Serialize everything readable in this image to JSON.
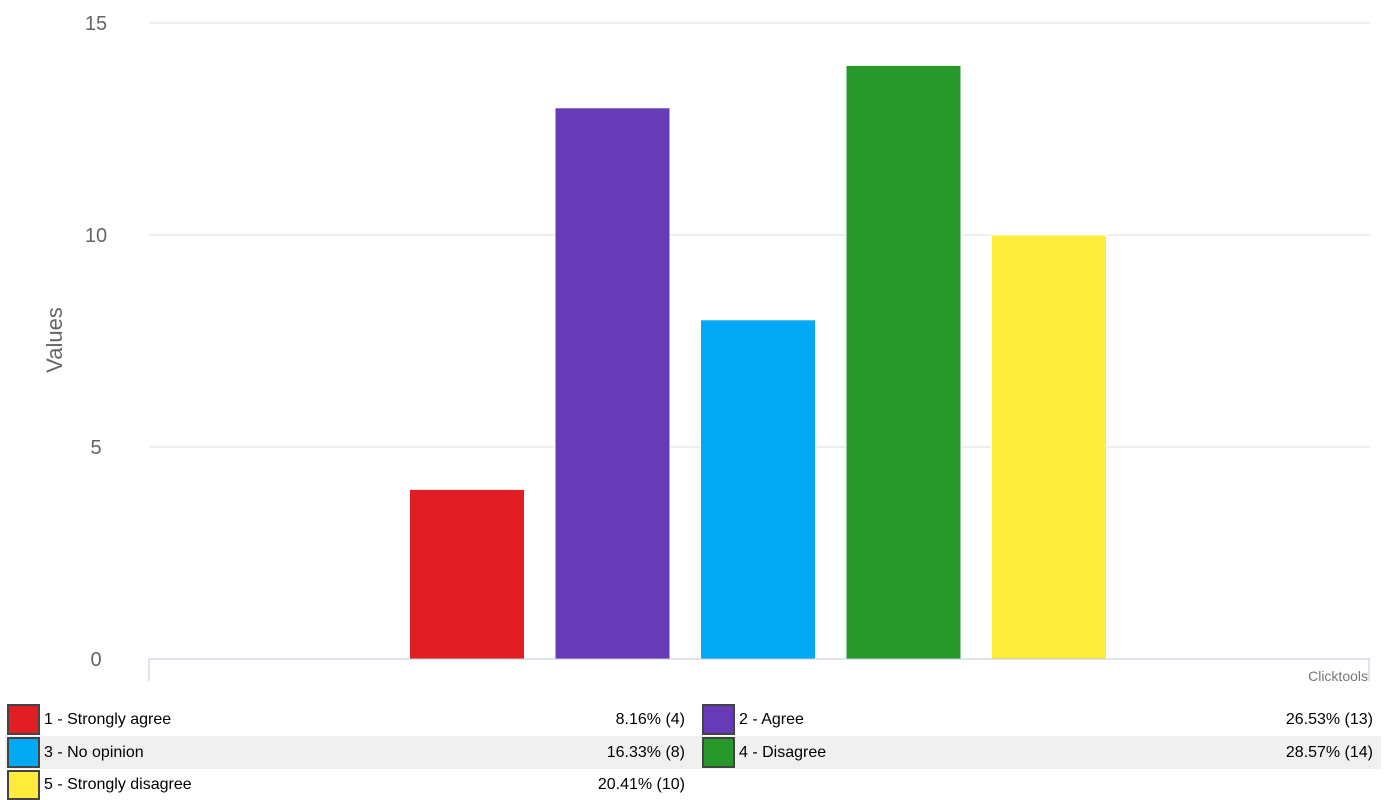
{
  "chart_data": {
    "type": "bar",
    "categories": [
      "1 - Strongly agree",
      "2 - Agree",
      "3 - No opinion",
      "4 - Disagree",
      "5 - Strongly disagree"
    ],
    "values": [
      4,
      13,
      8,
      14,
      10
    ],
    "colors": [
      "#e31d24",
      "#673ab7",
      "#03a9f4",
      "#26992a",
      "#ffeb3b"
    ],
    "ylabel": "Values",
    "ylim": [
      0,
      15
    ],
    "yticks": [
      0,
      5,
      10,
      15
    ],
    "grid": true,
    "credit": "Clicktools",
    "legend": {
      "placement": "bottom",
      "entries": [
        {
          "label": "1 - Strongly agree",
          "value_text": "8.16% (4)",
          "color": "#e31d24"
        },
        {
          "label": "2 - Agree",
          "value_text": "26.53% (13)",
          "color": "#673ab7"
        },
        {
          "label": "3 - No opinion",
          "value_text": "16.33% (8)",
          "color": "#03a9f4"
        },
        {
          "label": "4 - Disagree",
          "value_text": "28.57% (14)",
          "color": "#26992a"
        },
        {
          "label": "5 - Strongly disagree",
          "value_text": "20.41% (10)",
          "color": "#ffeb3b"
        }
      ]
    }
  }
}
